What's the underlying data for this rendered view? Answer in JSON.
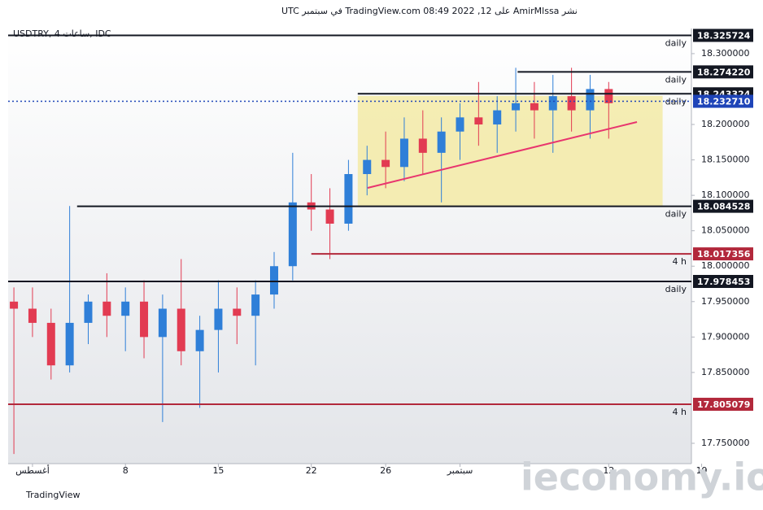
{
  "chart_data": {
    "type": "candlestick",
    "header": "نشر AmirMlssa على TradingView.com 08:49 2022 ,12 في سبتمبر UTC",
    "symbol": "USDTRY, 4 ساعات, IDC",
    "footer": "TradingView",
    "watermark": "ieconomy.io",
    "up_color": "#2f7fd8",
    "down_color": "#e23b52",
    "x": [
      -1,
      0,
      1,
      2,
      3,
      4,
      5,
      6,
      7,
      8,
      9,
      10,
      11,
      12,
      13,
      14,
      15,
      16,
      17,
      18,
      19,
      20,
      21,
      22,
      23,
      24,
      25,
      26,
      27,
      28,
      29,
      30,
      31
    ],
    "open": [
      17.95,
      17.94,
      17.92,
      17.86,
      17.92,
      17.95,
      17.93,
      17.95,
      17.9,
      17.94,
      17.88,
      17.91,
      17.94,
      17.93,
      17.96,
      18.0,
      18.09,
      18.08,
      18.06,
      18.13,
      18.15,
      18.14,
      18.18,
      18.16,
      18.19,
      18.21,
      18.2,
      18.22,
      18.23,
      18.22,
      18.24,
      18.22,
      18.25
    ],
    "high": [
      17.97,
      17.97,
      17.94,
      18.085,
      17.96,
      17.99,
      17.97,
      17.98,
      17.96,
      18.01,
      17.93,
      17.98,
      17.97,
      17.98,
      18.02,
      18.16,
      18.13,
      18.11,
      18.15,
      18.17,
      18.19,
      18.21,
      18.22,
      18.21,
      18.23,
      18.26,
      18.24,
      18.28,
      18.26,
      18.27,
      18.28,
      18.27,
      18.26
    ],
    "low": [
      17.735,
      17.9,
      17.84,
      17.85,
      17.89,
      17.9,
      17.88,
      17.87,
      17.78,
      17.86,
      17.8,
      17.85,
      17.89,
      17.86,
      17.94,
      17.98,
      18.05,
      18.01,
      18.05,
      18.1,
      18.11,
      18.12,
      18.13,
      18.09,
      18.15,
      18.17,
      18.16,
      18.19,
      18.18,
      18.16,
      18.19,
      18.18,
      18.18
    ],
    "close": [
      17.94,
      17.92,
      17.86,
      17.92,
      17.95,
      17.93,
      17.95,
      17.9,
      17.94,
      17.88,
      17.91,
      17.94,
      17.93,
      17.96,
      18.0,
      18.09,
      18.08,
      18.06,
      18.13,
      18.15,
      18.14,
      18.18,
      18.16,
      18.19,
      18.21,
      18.2,
      18.22,
      18.23,
      18.22,
      18.24,
      18.22,
      18.25,
      18.23
    ],
    "xlim": [
      -1.31,
      35.45
    ],
    "xticks": [
      {
        "value": 0,
        "label": "أغسطس"
      },
      {
        "value": 5,
        "label": "8"
      },
      {
        "value": 10,
        "label": "15"
      },
      {
        "value": 15,
        "label": "22"
      },
      {
        "value": 19,
        "label": "26"
      },
      {
        "value": 23,
        "label": "سبتمبر"
      },
      {
        "value": 31,
        "label": "12"
      },
      {
        "value": 36,
        "label": "19"
      }
    ],
    "ylim": [
      17.7213,
      18.3355
    ],
    "yticks": [
      {
        "value": 17.75,
        "label": "17.750000"
      },
      {
        "value": 17.85,
        "label": "17.850000"
      },
      {
        "value": 17.9,
        "label": "17.900000"
      },
      {
        "value": 17.95,
        "label": "17.950000"
      },
      {
        "value": 18,
        "label": "18.000000"
      },
      {
        "value": 18.05,
        "label": "18.050000"
      },
      {
        "value": 18.1,
        "label": "18.100000"
      },
      {
        "value": 18.15,
        "label": "18.150000"
      },
      {
        "value": 18.2,
        "label": "18.200000"
      },
      {
        "value": 18.3,
        "label": "18.300000"
      }
    ],
    "zone": {
      "from": 17.5,
      "to": 33.9,
      "top": 18.2403,
      "bottom": 18.085,
      "color": "#f3eaa6"
    },
    "trendline": {
      "x": [
        18.03,
        32.52
      ],
      "y": [
        18.1105,
        18.2035
      ],
      "color": "#e8356e"
    },
    "levels": [
      {
        "value": 18.243324,
        "value_label": "18.243324",
        "tag": "daily",
        "from": 17.5,
        "color": "#131722"
      },
      {
        "value": 18.325724,
        "value_label": "18.325724",
        "tag": "daily",
        "from": -1.31,
        "color": "#131722"
      },
      {
        "value": 18.27422,
        "value_label": "18.274220",
        "tag": "daily",
        "from": 26.1,
        "color": "#131722"
      },
      {
        "value": 18.084528,
        "value_label": "18.084528",
        "tag": "daily",
        "from": 2.4,
        "color": "#131722"
      },
      {
        "value": 18.017356,
        "value_label": "18.017356",
        "tag": "4 h",
        "from": 15.0,
        "color": "#b2283b"
      },
      {
        "value": 17.978453,
        "value_label": "17.978453",
        "tag": "daily",
        "from": -1.31,
        "color": "#131722"
      },
      {
        "value": 17.805079,
        "value_label": "17.805079",
        "tag": "4 h",
        "from": -1.31,
        "color": "#b2283b"
      }
    ],
    "current_price": {
      "value": 18.23271,
      "value_label": "18.232710",
      "color": "#1e44b8"
    }
  }
}
